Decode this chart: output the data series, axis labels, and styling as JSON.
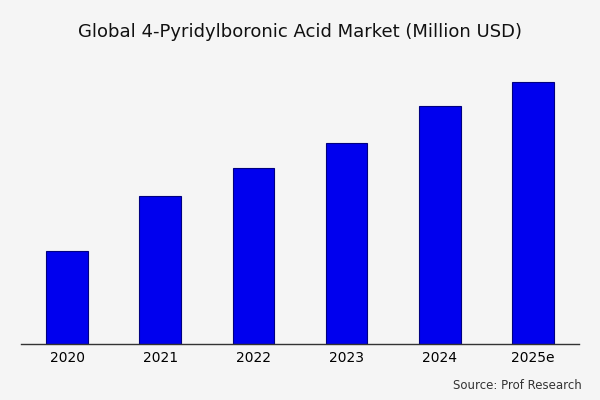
{
  "title": "Global 4-Pyridylboronic Acid Market (Million USD)",
  "categories": [
    "2020",
    "2021",
    "2022",
    "2023",
    "2024",
    "2025e"
  ],
  "values": [
    30,
    48,
    57,
    65,
    77,
    85
  ],
  "bar_color": "#0000EE",
  "bar_edge_color": "#000080",
  "background_color": "#f5f5f5",
  "source_text": "Source: Prof Research",
  "title_fontsize": 13,
  "tick_fontsize": 10,
  "source_fontsize": 8.5,
  "ylim": [
    0,
    95
  ],
  "bar_width": 0.45
}
